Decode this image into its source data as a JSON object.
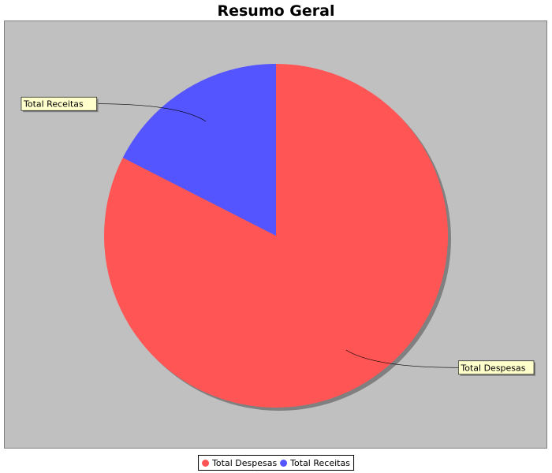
{
  "chart_data": {
    "type": "pie",
    "title": "Resumo Geral",
    "slices": [
      {
        "label": "Total Despesas",
        "value": 82.5,
        "color": "#ff5555"
      },
      {
        "label": "Total Receitas",
        "value": 17.5,
        "color": "#5555ff"
      }
    ],
    "legend_position": "bottom",
    "show_labels": true,
    "background": "#c0c0c0"
  }
}
